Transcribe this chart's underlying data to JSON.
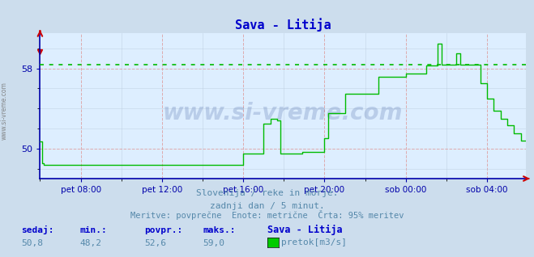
{
  "title": "Sava - Litija",
  "title_color": "#0000cc",
  "bg_color": "#ccdded",
  "plot_bg_color": "#ddeeff",
  "line_color": "#00bb00",
  "dotted_line_color": "#00bb00",
  "dotted_line_y": 58.4,
  "grid_color_red": "#dd9999",
  "grid_color_blue": "#bbccdd",
  "axis_color": "#0000aa",
  "tick_color": "#0000aa",
  "text_color": "#5588aa",
  "ylabel_left_text": "www.si-vreme.com",
  "subtitle1": "Slovenija / reke in morje.",
  "subtitle2": "zadnji dan / 5 minut.",
  "subtitle3": "Meritve: povprečne  Enote: metrične  Črta: 95% meritev",
  "stat_labels": [
    "sedaj:",
    "min.:",
    "povpr.:",
    "maks.:"
  ],
  "stat_values": [
    "50,8",
    "48,2",
    "52,6",
    "59,0"
  ],
  "stat_series_label": "Sava - Litija",
  "stat_series_unit": "pretok[m3/s]",
  "stat_label_color": "#0000cc",
  "stat_value_color": "#5588aa",
  "legend_box_color": "#00cc00",
  "ylim_min": 47.0,
  "ylim_max": 61.5,
  "yticks": [
    50,
    58
  ],
  "xtick_labels": [
    "pet 08:00",
    "pet 12:00",
    "pet 16:00",
    "pet 20:00",
    "sob 00:00",
    "sob 04:00"
  ],
  "watermark": "www.si-vreme.com",
  "num_points": 288
}
